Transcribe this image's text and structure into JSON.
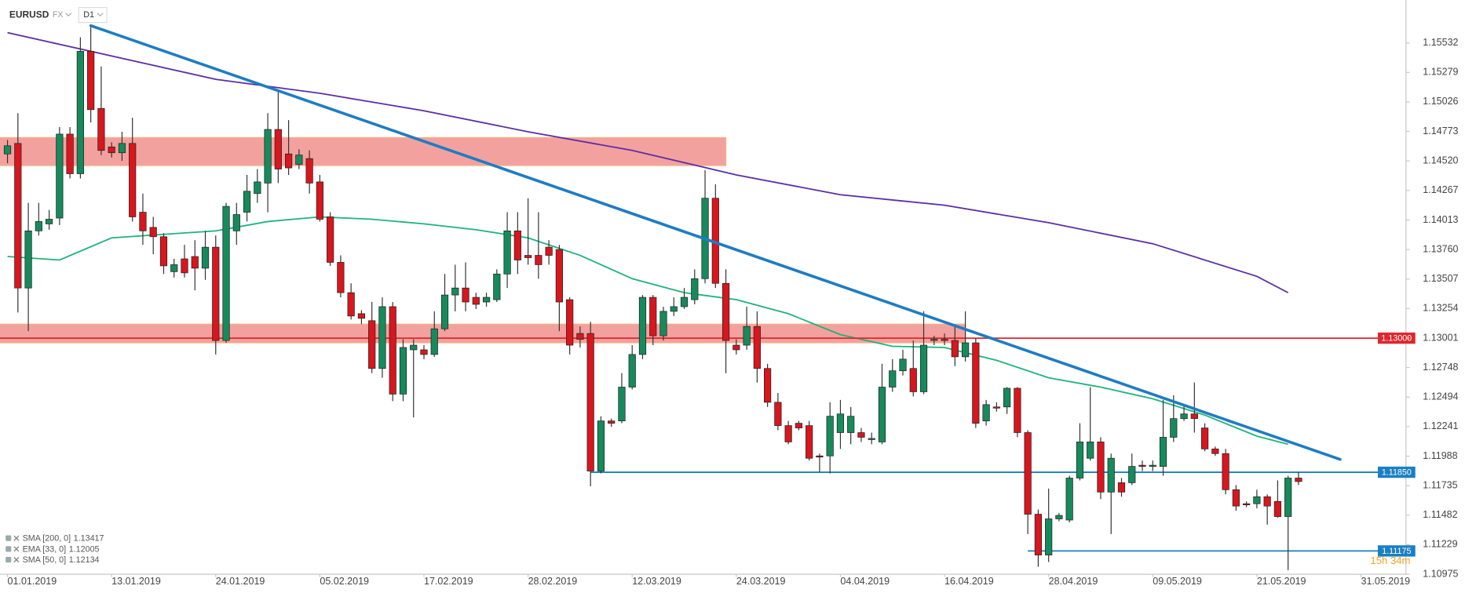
{
  "chart_data": {
    "type": "candlestick",
    "symbol": "EURUSD",
    "market": "FX",
    "timeframe": "D1",
    "countdown": "15h 34m",
    "up_color": "#168a5c",
    "down_color": "#d7161d",
    "x": [
      0,
      1,
      2,
      3,
      4,
      5,
      6,
      7,
      8,
      9,
      10,
      11,
      12,
      13,
      14,
      15,
      16,
      17,
      18,
      19,
      20,
      21,
      22,
      23,
      24,
      25,
      26,
      27,
      28,
      29,
      30,
      31,
      32,
      33,
      34,
      35,
      36,
      37,
      38,
      39,
      40,
      41,
      42,
      43,
      44,
      45,
      46,
      47,
      48,
      49,
      50,
      51,
      52,
      53,
      54,
      55,
      56,
      57,
      58,
      59,
      60,
      61,
      62,
      63,
      64,
      65,
      66,
      67,
      68,
      69,
      70,
      71,
      72,
      73,
      74,
      75,
      76,
      77,
      78,
      79,
      80,
      81,
      82,
      83,
      84,
      85,
      86,
      87,
      88,
      89,
      90,
      91,
      92,
      93,
      94,
      95,
      96,
      97,
      98,
      99,
      100,
      101,
      102,
      103,
      104,
      105,
      106,
      107,
      108,
      109,
      110,
      111,
      112,
      113,
      114,
      115,
      116,
      117,
      118,
      119,
      120,
      121,
      122,
      123,
      124
    ],
    "open": [
      1.1458,
      1.1467,
      1.1343,
      1.1392,
      1.1398,
      1.1403,
      1.1475,
      1.1441,
      1.1546,
      1.1497,
      1.1464,
      1.1459,
      1.1467,
      1.1408,
      1.1395,
      1.1387,
      1.1357,
      1.1368,
      1.137,
      1.136,
      1.1378,
      1.1298,
      1.1392,
      1.1408,
      1.1424,
      1.1433,
      1.1479,
      1.1458,
      1.1449,
      1.1454,
      1.1434,
      1.1404,
      1.1365,
      1.1339,
      1.1321,
      1.1315,
      1.1274,
      1.1327,
      1.1252,
      1.129,
      1.129,
      1.1286,
      1.1308,
      1.1337,
      1.1343,
      1.1335,
      1.1331,
      1.1333,
      1.1355,
      1.1392,
      1.1371,
      1.1371,
      1.1378,
      1.1376,
      1.1333,
      1.1304,
      1.1304,
      1.1186,
      1.1229,
      1.1229,
      1.1258,
      1.1286,
      1.1335,
      1.1302,
      1.1323,
      1.1327,
      1.1333,
      1.1351,
      1.142,
      1.1347,
      1.1294,
      1.1294,
      1.131,
      1.1274,
      1.1245,
      1.1225,
      1.1227,
      1.1225,
      1.1199,
      1.1199,
      1.1219,
      1.1219,
      1.1219,
      1.1213,
      1.1211,
      1.1258,
      1.1272,
      1.1274,
      1.1254,
      1.1298,
      1.1299,
      1.1298,
      1.1284,
      1.1296,
      1.1229,
      1.1241,
      1.1241,
      1.1257,
      1.1219,
      1.1149,
      1.1114,
      1.1145,
      1.1144,
      1.118,
      1.1197,
      1.1211,
      1.1168,
      1.1176,
      1.1176,
      1.1191,
      1.119,
      1.119,
      1.1215,
      1.1231,
      1.1235,
      1.1223,
      1.1205,
      1.1201,
      1.117,
      1.1158,
      1.1158,
      1.1164,
      1.116,
      1.1147,
      1.118
    ],
    "high": [
      1.147,
      1.1493,
      1.1416,
      1.1416,
      1.141,
      1.1481,
      1.1481,
      1.1558,
      1.1568,
      1.1533,
      1.1468,
      1.1477,
      1.1489,
      1.1424,
      1.1404,
      1.139,
      1.1368,
      1.138,
      1.1384,
      1.1392,
      1.1388,
      1.1416,
      1.1416,
      1.144,
      1.1445,
      1.1493,
      1.1511,
      1.1487,
      1.1462,
      1.1461,
      1.144,
      1.1408,
      1.1371,
      1.1347,
      1.1324,
      1.1331,
      1.1335,
      1.1331,
      1.1299,
      1.1299,
      1.1294,
      1.1323,
      1.1355,
      1.1363,
      1.1365,
      1.1339,
      1.1339,
      1.1359,
      1.1408,
      1.1408,
      1.142,
      1.1408,
      1.1384,
      1.138,
      1.1335,
      1.131,
      1.1314,
      1.1233,
      1.1231,
      1.127,
      1.1294,
      1.1337,
      1.1337,
      1.1327,
      1.1335,
      1.1343,
      1.1359,
      1.1444,
      1.1432,
      1.1359,
      1.1299,
      1.1327,
      1.1323,
      1.1278,
      1.1253,
      1.1229,
      1.1229,
      1.1229,
      1.1201,
      1.1245,
      1.1247,
      1.1241,
      1.1223,
      1.1219,
      1.1278,
      1.1282,
      1.129,
      1.1298,
      1.1323,
      1.1302,
      1.1304,
      1.1312,
      1.1323,
      1.13,
      1.1247,
      1.1245,
      1.1258,
      1.1258,
      1.1221,
      1.1153,
      1.1171,
      1.115,
      1.1182,
      1.1227,
      1.1258,
      1.1215,
      1.1201,
      1.118,
      1.1201,
      1.1195,
      1.1195,
      1.1247,
      1.1251,
      1.1243,
      1.1262,
      1.1227,
      1.1207,
      1.1205,
      1.1174,
      1.116,
      1.117,
      1.1166,
      1.1178,
      1.1182,
      1.1185
    ],
    "low": [
      1.145,
      1.1322,
      1.1306,
      1.1388,
      1.1393,
      1.1397,
      1.1437,
      1.1437,
      1.1485,
      1.1457,
      1.1455,
      1.1452,
      1.14,
      1.138,
      1.1372,
      1.1355,
      1.1352,
      1.1352,
      1.1341,
      1.135,
      1.1286,
      1.1296,
      1.138,
      1.14,
      1.1416,
      1.1408,
      1.1433,
      1.144,
      1.1445,
      1.1424,
      1.14,
      1.1362,
      1.1335,
      1.1316,
      1.1312,
      1.127,
      1.1266,
      1.1246,
      1.1246,
      1.1232,
      1.1282,
      1.1284,
      1.1306,
      1.1323,
      1.1323,
      1.1325,
      1.1327,
      1.1331,
      1.1343,
      1.1355,
      1.1363,
      1.1351,
      1.1363,
      1.1306,
      1.1286,
      1.1292,
      1.1173,
      1.1184,
      1.1224,
      1.1227,
      1.1256,
      1.1282,
      1.1294,
      1.1298,
      1.1319,
      1.1325,
      1.1329,
      1.1347,
      1.1343,
      1.127,
      1.1286,
      1.129,
      1.1262,
      1.1241,
      1.1221,
      1.1209,
      1.1221,
      1.1195,
      1.1185,
      1.1184,
      1.1205,
      1.1209,
      1.1211,
      1.1209,
      1.1209,
      1.1254,
      1.1268,
      1.125,
      1.1252,
      1.1294,
      1.1294,
      1.1276,
      1.128,
      1.1223,
      1.1225,
      1.1237,
      1.1235,
      1.1215,
      1.1132,
      1.1104,
      1.1108,
      1.1143,
      1.1142,
      1.1178,
      1.1195,
      1.1162,
      1.1132,
      1.1164,
      1.1174,
      1.1186,
      1.1186,
      1.1182,
      1.1211,
      1.1229,
      1.1219,
      1.1203,
      1.1199,
      1.1166,
      1.1152,
      1.1155,
      1.1154,
      1.114,
      1.1146,
      1.1101,
      1.1174
    ],
    "close": [
      1.1465,
      1.1343,
      1.1392,
      1.14,
      1.1402,
      1.1475,
      1.1441,
      1.1546,
      1.1496,
      1.1461,
      1.1459,
      1.1467,
      1.1404,
      1.1392,
      1.1387,
      1.1362,
      1.1363,
      1.1356,
      1.136,
      1.1378,
      1.1298,
      1.1413,
      1.1406,
      1.1426,
      1.1434,
      1.1479,
      1.1445,
      1.1446,
      1.1457,
      1.1433,
      1.1402,
      1.1365,
      1.1339,
      1.1319,
      1.1317,
      1.1274,
      1.1327,
      1.1252,
      1.1292,
      1.1294,
      1.1286,
      1.1308,
      1.1337,
      1.1343,
      1.1331,
      1.1329,
      1.1335,
      1.1355,
      1.1392,
      1.1367,
      1.1369,
      1.1363,
      1.1371,
      1.1331,
      1.1294,
      1.1299,
      1.1186,
      1.1229,
      1.1227,
      1.1258,
      1.1286,
      1.1335,
      1.1302,
      1.1323,
      1.1327,
      1.1335,
      1.1351,
      1.142,
      1.1347,
      1.1298,
      1.129,
      1.131,
      1.1274,
      1.1245,
      1.1225,
      1.1211,
      1.1223,
      1.1197,
      1.1198,
      1.1233,
      1.1235,
      1.1233,
      1.1215,
      1.1214,
      1.1258,
      1.1272,
      1.1282,
      1.1254,
      1.1294,
      1.1299,
      1.1298,
      1.1284,
      1.1296,
      1.1227,
      1.1243,
      1.124,
      1.1257,
      1.1219,
      1.1149,
      1.1114,
      1.1145,
      1.1148,
      1.118,
      1.1211,
      1.1211,
      1.1168,
      1.1197,
      1.1168,
      1.119,
      1.119,
      1.1191,
      1.1215,
      1.1231,
      1.1235,
      1.1231,
      1.1205,
      1.1201,
      1.117,
      1.1156,
      1.1157,
      1.1164,
      1.1156,
      1.1147,
      1.118,
      1.1177
    ],
    "indicators": [
      {
        "name": "SMA [200, 0]",
        "value": 1.13417,
        "color": "#5a2ea6",
        "x": [
          0,
          10,
          20,
          30,
          40,
          50,
          60,
          70,
          80,
          90,
          100,
          110,
          120,
          123
        ],
        "values": [
          1.1562,
          1.1542,
          1.1522,
          1.151,
          1.1495,
          1.1477,
          1.1461,
          1.144,
          1.1423,
          1.1414,
          1.1399,
          1.1381,
          1.1353,
          1.1339
        ]
      },
      {
        "name": "EMA [33, 0]",
        "value": 1.12005,
        "color": "#2b6cc4"
      },
      {
        "name": "SMA [50, 0]",
        "value": 1.12134,
        "color": "#1db37b",
        "x": [
          0,
          5,
          10,
          15,
          20,
          25,
          30,
          35,
          40,
          45,
          50,
          55,
          60,
          65,
          70,
          75,
          80,
          85,
          90,
          95,
          100,
          105,
          110,
          115,
          120,
          123
        ],
        "values": [
          1.137,
          1.1367,
          1.1386,
          1.1389,
          1.1392,
          1.14,
          1.1404,
          1.1402,
          1.1398,
          1.1393,
          1.1386,
          1.1371,
          1.1351,
          1.1339,
          1.1333,
          1.1321,
          1.1303,
          1.1293,
          1.1292,
          1.1281,
          1.1266,
          1.1258,
          1.1248,
          1.1234,
          1.1216,
          1.1209
        ]
      }
    ],
    "trendline": {
      "color": "#1f7cc2",
      "x": [
        8,
        128
      ],
      "y": [
        1.1568,
        1.1196
      ]
    },
    "zones": [
      {
        "color": "#f08a86",
        "xlim": [
          -1,
          69
        ],
        "ylim": [
          1.1448,
          1.1472
        ]
      },
      {
        "color": "#f08a86",
        "xlim": [
          -1,
          92
        ],
        "ylim": [
          1.1296,
          1.1312
        ]
      }
    ],
    "levels": [
      {
        "value": 1.13,
        "label": "1.13000",
        "color": "#e0262d",
        "from": -1
      },
      {
        "value": 1.1185,
        "label": "1.11850",
        "color": "#1a7fc3",
        "from": 56
      },
      {
        "value": 1.11175,
        "color": "#1a7fc3",
        "from": 98
      }
    ],
    "xlim": [
      -0.72,
      134.32
    ],
    "xticks": [
      {
        "value": 0,
        "label": "01.01.2019"
      },
      {
        "value": 10,
        "label": "13.01.2019"
      },
      {
        "value": 20,
        "label": "24.01.2019"
      },
      {
        "value": 30,
        "label": "05.02.2019"
      },
      {
        "value": 40,
        "label": "17.02.2019"
      },
      {
        "value": 50,
        "label": "28.02.2019"
      },
      {
        "value": 60,
        "label": "12.03.2019"
      },
      {
        "value": 70,
        "label": "24.03.2019"
      },
      {
        "value": 80,
        "label": "04.04.2019"
      },
      {
        "value": 90,
        "label": "16.04.2019"
      },
      {
        "value": 100,
        "label": "28.04.2019"
      },
      {
        "value": 110,
        "label": "09.05.2019"
      },
      {
        "value": 120,
        "label": "21.05.2019"
      },
      {
        "value": 130,
        "label": "31.05.2019"
      }
    ],
    "ylim": [
      1.10975,
      1.159
    ],
    "yticks": [
      1.15532,
      1.15279,
      1.15026,
      1.14773,
      {
        "value": 1.1452,
        "label": "1.14520"
      },
      1.14267,
      1.14013,
      {
        "value": 1.1376,
        "label": "1.13760"
      },
      1.13507,
      1.13254,
      1.13001,
      1.12748,
      1.12494,
      1.12241,
      1.11988,
      1.11735,
      1.11482,
      1.11229,
      1.10975
    ]
  }
}
